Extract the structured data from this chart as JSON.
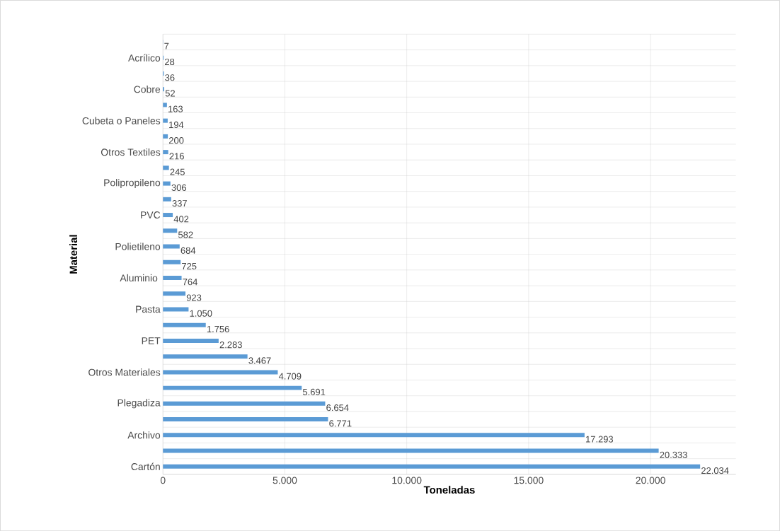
{
  "chart_data": {
    "type": "bar",
    "orientation": "horizontal",
    "xlabel": "Toneladas",
    "ylabel": "Material",
    "categories": [
      null,
      "Acrílico",
      null,
      "Cobre",
      null,
      "Cubeta o Paneles",
      null,
      "Otros Textiles",
      null,
      "Polipropileno",
      null,
      "PVC",
      null,
      "Polietileno",
      null,
      "Aluminio ",
      null,
      "Pasta",
      null,
      "PET",
      null,
      "Otros Materiales",
      null,
      "Plegadiza",
      null,
      "Archivo",
      null,
      "Cartón"
    ],
    "values": [
      7,
      28,
      36,
      52,
      163,
      194,
      200,
      216,
      245,
      306,
      337,
      402,
      582,
      684,
      725,
      764,
      923,
      1050,
      1756,
      2283,
      3467,
      4709,
      5691,
      6654,
      6771,
      17293,
      20333,
      22034
    ],
    "value_labels": [
      "7",
      "28",
      "36",
      "52",
      "163",
      "194",
      "200",
      "216",
      "245",
      "306",
      "337",
      "402",
      "582",
      "684",
      "725",
      "764",
      "923",
      "1.050",
      "1.756",
      "2.283",
      "3.467",
      "4.709",
      "5.691",
      "6.654",
      "6.771",
      "17.293",
      "20.333",
      "22.034"
    ],
    "color": "#5b9bd5",
    "xlim": [
      0,
      23500
    ],
    "xticks": [
      0,
      {
        "value": 5000,
        "label": "5.000"
      },
      {
        "value": 10000,
        "label": "10.000"
      },
      {
        "value": 15000,
        "label": "15.000"
      },
      {
        "value": 20000,
        "label": "20.000"
      }
    ],
    "grid": true
  }
}
